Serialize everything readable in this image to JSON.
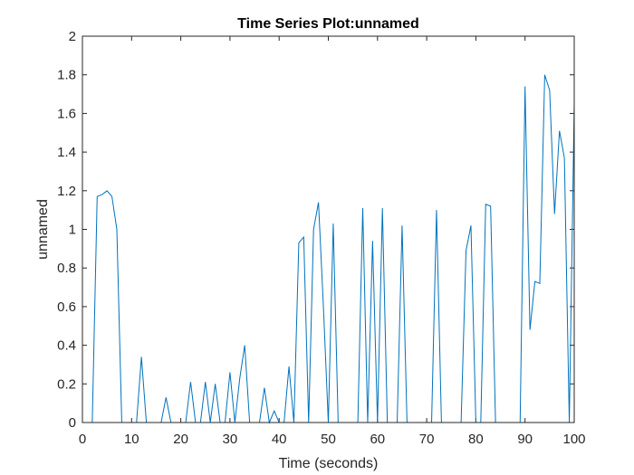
{
  "chart_data": {
    "type": "line",
    "title": "Time Series Plot:unnamed",
    "xlabel": "Time (seconds)",
    "ylabel": "unnamed",
    "xlim": [
      0,
      100
    ],
    "ylim": [
      0,
      2
    ],
    "xticks": [
      0,
      10,
      20,
      30,
      40,
      50,
      60,
      70,
      80,
      90,
      100
    ],
    "yticks": [
      0,
      0.2,
      0.4,
      0.6,
      0.8,
      1,
      1.2,
      1.4,
      1.6,
      1.8,
      2
    ],
    "ytick_labels": [
      "0",
      "0.2",
      "0.4",
      "0.6",
      "0.8",
      "1",
      "1.2",
      "1.4",
      "1.6",
      "1.8",
      "2"
    ],
    "grid": false,
    "line_color": "#0072BD",
    "series": [
      {
        "x": [
          2,
          3,
          4,
          5,
          6,
          7,
          8,
          9,
          10,
          11,
          12,
          13,
          14,
          15,
          16,
          17,
          18,
          19,
          20,
          21,
          22,
          23,
          24,
          25,
          26,
          27,
          28,
          29,
          30,
          31,
          32,
          33,
          34,
          35,
          36,
          37,
          38,
          39,
          40,
          41,
          42,
          43,
          44,
          45,
          46,
          47,
          48,
          49,
          50,
          51,
          52,
          53,
          54,
          55,
          56,
          57,
          58,
          59,
          60,
          61,
          62,
          63,
          64,
          65,
          66,
          67,
          68,
          69,
          70,
          71,
          72,
          73,
          74,
          75,
          76,
          77,
          78,
          79,
          80,
          81,
          82,
          83,
          84,
          85,
          86,
          87,
          88,
          89,
          90,
          91,
          92,
          93,
          94,
          95,
          96,
          97,
          98,
          99,
          100
        ],
        "y": [
          0,
          1.17,
          1.18,
          1.2,
          1.17,
          1.0,
          0,
          0,
          0,
          0,
          0.34,
          0,
          0,
          0,
          0,
          0.13,
          0,
          0,
          0,
          0,
          0.21,
          0,
          0,
          0.21,
          0,
          0.2,
          0,
          0,
          0.26,
          0,
          0.23,
          0.4,
          0,
          0,
          0,
          0.18,
          0,
          0.06,
          0,
          0,
          0.29,
          0,
          0.93,
          0.96,
          0,
          1.0,
          1.14,
          0.6,
          0,
          1.03,
          0,
          0,
          0,
          0,
          0,
          1.11,
          0,
          0.94,
          0,
          1.11,
          0,
          0,
          0,
          1.02,
          0,
          0,
          0,
          0,
          0,
          0,
          1.1,
          0,
          0,
          0,
          0,
          0,
          0.89,
          1.02,
          0,
          0,
          1.13,
          1.12,
          0,
          0,
          0,
          0,
          0,
          0,
          1.74,
          0.48,
          0.73,
          0.72,
          1.8,
          1.72,
          1.08,
          1.51,
          1.37,
          0,
          1.65
        ]
      }
    ]
  }
}
